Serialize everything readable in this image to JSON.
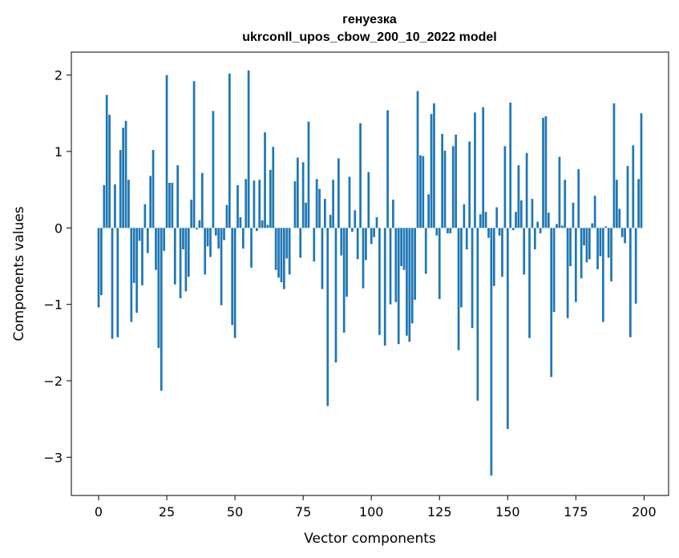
{
  "chart_data": {
    "type": "bar",
    "title_lines": [
      "генуезка",
      "ukrconll_upos_cbow_200_10_2022 model"
    ],
    "xlabel": "Vector components",
    "ylabel": "Components values",
    "xlim": [
      -10,
      209
    ],
    "ylim": [
      -3.5,
      2.3
    ],
    "xticks": [
      0,
      25,
      50,
      75,
      100,
      125,
      150,
      175,
      200
    ],
    "xtick_labels": [
      "0",
      "25",
      "50",
      "75",
      "100",
      "125",
      "150",
      "175",
      "200"
    ],
    "yticks": [
      -3,
      -2,
      -1,
      0,
      1,
      2
    ],
    "ytick_labels": [
      "−3",
      "−2",
      "−1",
      "0",
      "1",
      "2"
    ],
    "grid": false,
    "legend": "none",
    "bar_color": "#1f77b4",
    "x": [
      0,
      1,
      2,
      3,
      4,
      5,
      6,
      7,
      8,
      9,
      10,
      11,
      12,
      13,
      14,
      15,
      16,
      17,
      18,
      19,
      20,
      21,
      22,
      23,
      24,
      25,
      26,
      27,
      28,
      29,
      30,
      31,
      32,
      33,
      34,
      35,
      36,
      37,
      38,
      39,
      40,
      41,
      42,
      43,
      44,
      45,
      46,
      47,
      48,
      49,
      50,
      51,
      52,
      53,
      54,
      55,
      56,
      57,
      58,
      59,
      60,
      61,
      62,
      63,
      64,
      65,
      66,
      67,
      68,
      69,
      70,
      71,
      72,
      73,
      74,
      75,
      76,
      77,
      78,
      79,
      80,
      81,
      82,
      83,
      84,
      85,
      86,
      87,
      88,
      89,
      90,
      91,
      92,
      93,
      94,
      95,
      96,
      97,
      98,
      99,
      100,
      101,
      102,
      103,
      104,
      105,
      106,
      107,
      108,
      109,
      110,
      111,
      112,
      113,
      114,
      115,
      116,
      117,
      118,
      119,
      120,
      121,
      122,
      123,
      124,
      125,
      126,
      127,
      128,
      129,
      130,
      131,
      132,
      133,
      134,
      135,
      136,
      137,
      138,
      139,
      140,
      141,
      142,
      143,
      144,
      145,
      146,
      147,
      148,
      149,
      150,
      151,
      152,
      153,
      154,
      155,
      156,
      157,
      158,
      159,
      160,
      161,
      162,
      163,
      164,
      165,
      166,
      167,
      168,
      169,
      170,
      171,
      172,
      173,
      174,
      175,
      176,
      177,
      178,
      179,
      180,
      181,
      182,
      183,
      184,
      185,
      186,
      187,
      188,
      189,
      190,
      191,
      192,
      193,
      194,
      195,
      196,
      197,
      198,
      199
    ],
    "values": [
      -1.04,
      -0.88,
      0.56,
      1.74,
      1.48,
      -1.45,
      0.57,
      -1.43,
      1.02,
      1.31,
      1.4,
      0.63,
      -1.23,
      -0.72,
      -1.11,
      -0.17,
      -0.75,
      0.31,
      -0.33,
      0.68,
      1.02,
      -0.55,
      -1.57,
      -2.13,
      -0.3,
      2.0,
      0.59,
      0.59,
      -0.74,
      0.82,
      -0.92,
      -0.28,
      -0.83,
      -0.64,
      0.37,
      1.92,
      -0.02,
      0.1,
      0.72,
      -0.61,
      -0.24,
      -0.38,
      1.53,
      -0.1,
      -0.27,
      -1.01,
      -0.16,
      0.3,
      2.02,
      -1.27,
      -1.44,
      0.56,
      0.14,
      -0.27,
      0.64,
      2.06,
      -0.52,
      0.62,
      -0.04,
      0.63,
      0.1,
      1.25,
      0.04,
      0.76,
      1.06,
      -0.55,
      -0.65,
      -0.71,
      -0.8,
      -0.4,
      -0.61,
      0.0,
      0.61,
      0.92,
      -0.39,
      0.86,
      0.33,
      1.39,
      0.0,
      -0.44,
      0.64,
      0.51,
      -0.8,
      0.38,
      -2.33,
      0.17,
      0.63,
      -1.76,
      0.91,
      -0.36,
      -1.37,
      -0.9,
      0.67,
      -0.05,
      0.23,
      -0.41,
      1.37,
      -0.79,
      -0.42,
      0.73,
      -0.21,
      -0.12,
      0.14,
      -1.4,
      0.0,
      -1.54,
      1.54,
      -1.0,
      0.37,
      -0.97,
      -1.52,
      -0.5,
      -0.55,
      -1.41,
      -1.49,
      -1.25,
      -0.94,
      1.79,
      0.95,
      0.94,
      -0.6,
      0.44,
      1.49,
      1.63,
      -0.1,
      -0.93,
      1.23,
      1.01,
      -0.07,
      -0.07,
      1.07,
      1.22,
      -1.6,
      -1.04,
      0.31,
      -0.28,
      1.13,
      -1.31,
      1.51,
      -2.26,
      0.18,
      1.58,
      0.21,
      -0.13,
      -3.24,
      -0.76,
      0.27,
      -0.1,
      -0.64,
      1.07,
      -2.63,
      1.64,
      -0.03,
      0.21,
      0.82,
      0.36,
      -0.61,
      0.98,
      -1.44,
      0.38,
      -0.28,
      0.08,
      -0.07,
      1.44,
      1.46,
      0.2,
      -1.95,
      -1.1,
      0.05,
      0.93,
      0.03,
      0.63,
      -1.18,
      -0.5,
      0.33,
      -0.97,
      0.77,
      -0.66,
      -0.23,
      -0.45,
      -0.41,
      0.06,
      0.42,
      -0.54,
      -0.37,
      -1.23,
      0.02,
      -0.39,
      -0.7,
      1.63,
      0.63,
      0.25,
      -0.12,
      -0.2,
      0.81,
      -1.43,
      1.08,
      -0.99,
      0.64,
      1.5
    ]
  }
}
